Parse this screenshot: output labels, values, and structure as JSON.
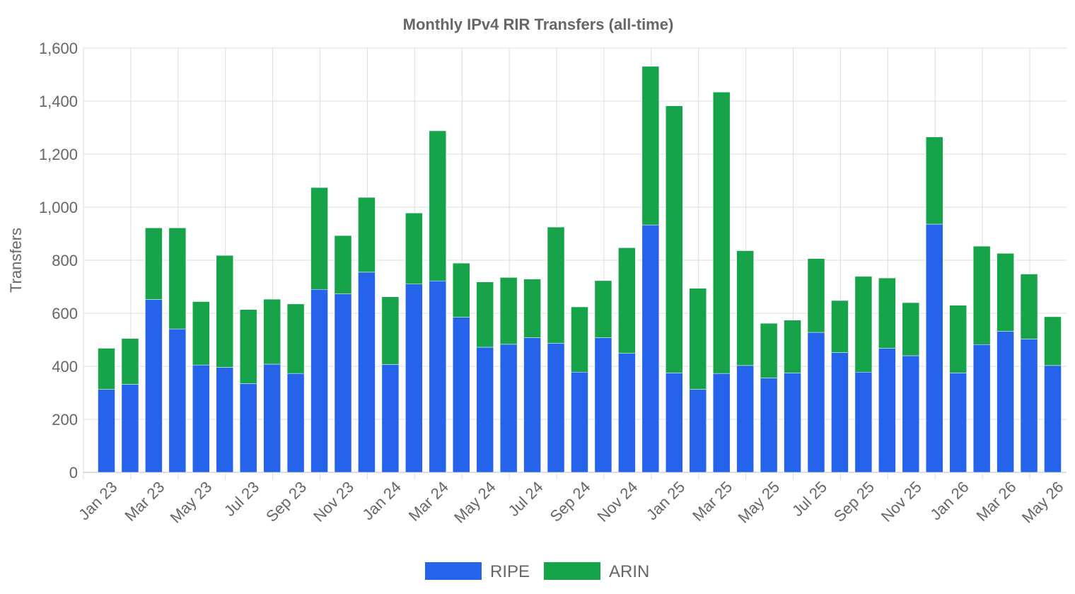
{
  "chart_data": {
    "type": "bar",
    "stacked": true,
    "title": "Monthly IPv4 RIR Transfers (all-time)",
    "xlabel": "",
    "ylabel": "Transfers",
    "ylim": [
      0,
      1600
    ],
    "yticks": [
      "0",
      "200",
      "400",
      "600",
      "800",
      "1,000",
      "1,200",
      "1,400",
      "1,600"
    ],
    "ytick_values": [
      0,
      200,
      400,
      600,
      800,
      1000,
      1200,
      1400,
      1600
    ],
    "grid": true,
    "legend_position": "bottom",
    "categories": [
      "Jan 23",
      "Feb 23",
      "Mar 23",
      "Apr 23",
      "May 23",
      "Jun 23",
      "Jul 23",
      "Aug 23",
      "Sep 23",
      "Oct 23",
      "Nov 23",
      "Dec 23",
      "Jan 24",
      "Feb 24",
      "Mar 24",
      "Apr 24",
      "May 24",
      "Jun 24",
      "Jul 24",
      "Aug 24",
      "Sep 24",
      "Oct 24",
      "Nov 24",
      "Dec 24",
      "Jan 25",
      "Feb 25",
      "Mar 25",
      "Apr 25",
      "May 25",
      "Jun 25",
      "Jul 25",
      "Aug 25",
      "Sep 25",
      "Oct 25",
      "Nov 25",
      "Dec 25",
      "Jan 26",
      "Feb 26",
      "Mar 26",
      "Apr 26",
      "May 26"
    ],
    "xtick_labels": [
      "Jan 23",
      "Mar 23",
      "May 23",
      "Jul 23",
      "Sep 23",
      "Nov 23",
      "Jan 24",
      "Mar 24",
      "May 24",
      "Jul 24",
      "Sep 24",
      "Nov 24",
      "Jan 25",
      "Mar 25",
      "May 25",
      "Jul 25",
      "Sep 25",
      "Nov 25",
      "Jan 26",
      "Mar 26",
      "May 26"
    ],
    "series": [
      {
        "name": "RIPE",
        "color": "#2563eb",
        "values": [
          313,
          332,
          652,
          541,
          405,
          396,
          335,
          408,
          373,
          690,
          673,
          755,
          407,
          710,
          722,
          585,
          472,
          483,
          508,
          487,
          378,
          508,
          449,
          933,
          375,
          313,
          373,
          403,
          356,
          375,
          528,
          452,
          378,
          468,
          440,
          936,
          375,
          482,
          532,
          503,
          403
        ]
      },
      {
        "name": "ARIN",
        "color": "#16a34a",
        "values": [
          155,
          173,
          270,
          381,
          239,
          422,
          279,
          245,
          262,
          384,
          220,
          282,
          255,
          268,
          566,
          204,
          246,
          252,
          221,
          438,
          246,
          215,
          398,
          598,
          1007,
          381,
          1061,
          433,
          206,
          199,
          278,
          196,
          361,
          265,
          200,
          329,
          255,
          371,
          294,
          245,
          184
        ]
      }
    ]
  }
}
